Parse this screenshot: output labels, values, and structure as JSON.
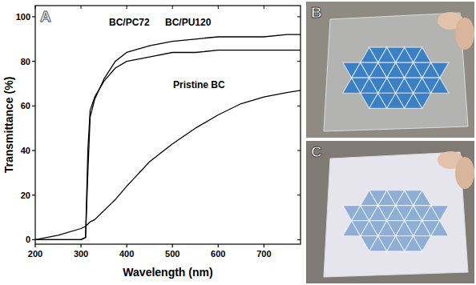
{
  "chart_data": {
    "type": "line",
    "panel": "A",
    "x_label": "Wavelength (nm)",
    "y_label": "Transmittance (%)",
    "x": [
      200,
      250,
      300,
      310,
      315,
      320,
      330,
      350,
      375,
      400,
      450,
      500,
      550,
      600,
      650,
      700,
      750,
      780
    ],
    "series": [
      {
        "name": "BC/PC72",
        "color": "#000000",
        "values": [
          0,
          0,
          0,
          1,
          40,
          58,
          64,
          71,
          77,
          80,
          82,
          84,
          84,
          85,
          85,
          85,
          85,
          85
        ]
      },
      {
        "name": "BC/PU120",
        "color": "#000000",
        "values": [
          0,
          0,
          0,
          1,
          30,
          55,
          63,
          72,
          80,
          84,
          87,
          89,
          90,
          91,
          91,
          91,
          92,
          92
        ]
      },
      {
        "name": "Pristine BC",
        "color": "#000000",
        "values": [
          0,
          2,
          5,
          6,
          7,
          8,
          9,
          13,
          18,
          24,
          35,
          43,
          50,
          56,
          61,
          64,
          66,
          67
        ]
      }
    ],
    "xlim": [
      200,
      780
    ],
    "ylim": [
      -2,
      105
    ],
    "xticks": [
      200,
      300,
      400,
      500,
      600,
      700
    ],
    "yticks": [
      0,
      20,
      40,
      60,
      80,
      100
    ],
    "grid": false
  },
  "photos": [
    {
      "letter": "B"
    },
    {
      "letter": "C"
    }
  ]
}
